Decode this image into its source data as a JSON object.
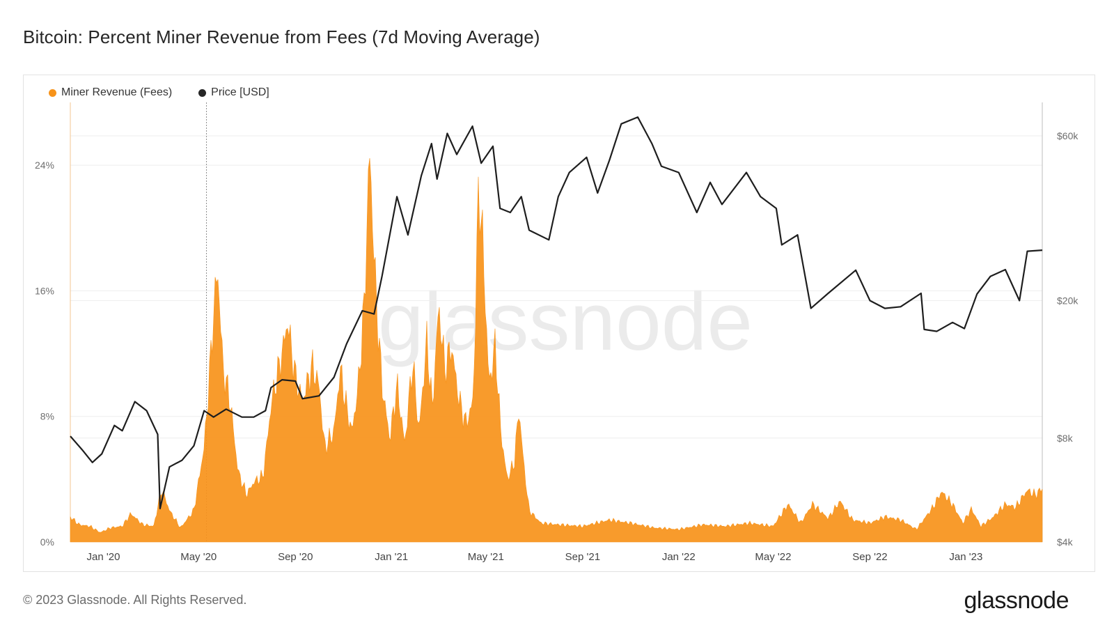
{
  "page": {
    "title": "Bitcoin: Percent Miner Revenue from Fees (7d Moving Average)",
    "footer": "© 2023 Glassnode. All Rights Reserved.",
    "brand": "glassnode",
    "watermark": "glassnode"
  },
  "colors": {
    "fees": "#f7931a",
    "price": "#1e1e1e",
    "grid": "#eeeeee",
    "axis_text": "#6e6e6e"
  },
  "chart_data": {
    "type": "area",
    "title": "Bitcoin: Percent Miner Revenue from Fees (7d Moving Average)",
    "legend_position": "top-left",
    "x_ticks": [
      "Jan '20",
      "May '20",
      "Sep '20",
      "Jan '21",
      "May '21",
      "Sep '21",
      "Jan '22",
      "May '22",
      "Sep '22",
      "Jan '23"
    ],
    "y_left": {
      "ticks": [
        "0%",
        "8%",
        "16%",
        "24%"
      ],
      "range": [
        0,
        28
      ]
    },
    "y_right": {
      "ticks": [
        "$4k",
        "$8k",
        "$20k",
        "$60k"
      ],
      "scale": "log",
      "range": [
        4000,
        75000
      ]
    },
    "series": [
      {
        "name": "Miner Revenue (Fees)",
        "axis": "left",
        "unit": "%",
        "points": [
          [
            "2019-11-20",
            1.6
          ],
          [
            "2019-12-01",
            1.1
          ],
          [
            "2019-12-15",
            1.0
          ],
          [
            "2019-12-28",
            0.6
          ],
          [
            "2020-01-10",
            0.9
          ],
          [
            "2020-01-25",
            1.0
          ],
          [
            "2020-02-05",
            1.8
          ],
          [
            "2020-02-20",
            1.1
          ],
          [
            "2020-03-05",
            1.0
          ],
          [
            "2020-03-15",
            3.4
          ],
          [
            "2020-03-25",
            2.0
          ],
          [
            "2020-04-08",
            0.9
          ],
          [
            "2020-04-25",
            2.0
          ],
          [
            "2020-05-08",
            6.0
          ],
          [
            "2020-05-14",
            10.0
          ],
          [
            "2020-05-20",
            14.5
          ],
          [
            "2020-05-25",
            17.5
          ],
          [
            "2020-06-01",
            11.0
          ],
          [
            "2020-06-10",
            9.0
          ],
          [
            "2020-06-20",
            4.5
          ],
          [
            "2020-07-01",
            3.0
          ],
          [
            "2020-07-10",
            3.8
          ],
          [
            "2020-07-22",
            4.2
          ],
          [
            "2020-08-02",
            9.0
          ],
          [
            "2020-08-15",
            12.0
          ],
          [
            "2020-08-22",
            14.0
          ],
          [
            "2020-09-01",
            10.5
          ],
          [
            "2020-09-10",
            9.0
          ],
          [
            "2020-09-22",
            11.2
          ],
          [
            "2020-10-01",
            10.0
          ],
          [
            "2020-10-08",
            6.0
          ],
          [
            "2020-10-20",
            7.0
          ],
          [
            "2020-10-28",
            11.0
          ],
          [
            "2020-11-05",
            8.5
          ],
          [
            "2020-11-12",
            7.0
          ],
          [
            "2020-11-20",
            10.0
          ],
          [
            "2020-11-28",
            15.5
          ],
          [
            "2020-12-04",
            25.0
          ],
          [
            "2020-12-12",
            16.0
          ],
          [
            "2020-12-20",
            10.0
          ],
          [
            "2020-12-30",
            6.5
          ],
          [
            "2021-01-08",
            10.0
          ],
          [
            "2021-01-18",
            6.2
          ],
          [
            "2021-01-28",
            11.5
          ],
          [
            "2021-02-05",
            7.0
          ],
          [
            "2021-02-15",
            12.8
          ],
          [
            "2021-02-22",
            8.5
          ],
          [
            "2021-03-02",
            15.0
          ],
          [
            "2021-03-10",
            11.0
          ],
          [
            "2021-03-18",
            12.5
          ],
          [
            "2021-03-28",
            9.0
          ],
          [
            "2021-04-06",
            7.5
          ],
          [
            "2021-04-15",
            9.0
          ],
          [
            "2021-04-22",
            23.0
          ],
          [
            "2021-04-27",
            19.0
          ],
          [
            "2021-05-05",
            10.0
          ],
          [
            "2021-05-13",
            12.5
          ],
          [
            "2021-05-20",
            7.0
          ],
          [
            "2021-05-28",
            4.0
          ],
          [
            "2021-06-06",
            5.0
          ],
          [
            "2021-06-12",
            8.5
          ],
          [
            "2021-06-18",
            5.0
          ],
          [
            "2021-06-25",
            2.0
          ],
          [
            "2021-07-10",
            1.2
          ],
          [
            "2021-08-01",
            1.1
          ],
          [
            "2021-09-01",
            1.0
          ],
          [
            "2021-10-05",
            1.4
          ],
          [
            "2021-11-01",
            1.2
          ],
          [
            "2021-12-01",
            0.9
          ],
          [
            "2022-01-01",
            0.8
          ],
          [
            "2022-02-01",
            1.1
          ],
          [
            "2022-03-01",
            1.0
          ],
          [
            "2022-04-01",
            1.2
          ],
          [
            "2022-05-01",
            1.0
          ],
          [
            "2022-05-20",
            2.4
          ],
          [
            "2022-06-05",
            1.2
          ],
          [
            "2022-06-20",
            2.4
          ],
          [
            "2022-07-10",
            1.5
          ],
          [
            "2022-07-25",
            2.6
          ],
          [
            "2022-08-10",
            1.4
          ],
          [
            "2022-09-01",
            1.2
          ],
          [
            "2022-09-20",
            1.6
          ],
          [
            "2022-10-10",
            1.4
          ],
          [
            "2022-10-30",
            0.8
          ],
          [
            "2022-11-20",
            2.2
          ],
          [
            "2022-12-01",
            3.2
          ],
          [
            "2022-12-15",
            2.4
          ],
          [
            "2022-12-28",
            1.2
          ],
          [
            "2023-01-08",
            2.1
          ],
          [
            "2023-01-20",
            1.0
          ],
          [
            "2023-02-05",
            1.6
          ],
          [
            "2023-02-20",
            2.4
          ],
          [
            "2023-03-05",
            2.2
          ],
          [
            "2023-03-20",
            3.3
          ],
          [
            "2023-03-30",
            3.0
          ],
          [
            "2023-04-08",
            3.4
          ]
        ]
      },
      {
        "name": "Price [USD]",
        "axis": "right",
        "unit": "USD",
        "points": [
          [
            "2019-11-20",
            8100
          ],
          [
            "2019-12-05",
            7400
          ],
          [
            "2019-12-18",
            6800
          ],
          [
            "2019-12-30",
            7200
          ],
          [
            "2020-01-15",
            8700
          ],
          [
            "2020-01-25",
            8400
          ],
          [
            "2020-02-10",
            10200
          ],
          [
            "2020-02-25",
            9600
          ],
          [
            "2020-03-10",
            8200
          ],
          [
            "2020-03-13",
            5000
          ],
          [
            "2020-03-25",
            6600
          ],
          [
            "2020-04-10",
            6900
          ],
          [
            "2020-04-25",
            7600
          ],
          [
            "2020-05-08",
            9600
          ],
          [
            "2020-05-20",
            9200
          ],
          [
            "2020-06-05",
            9700
          ],
          [
            "2020-06-25",
            9200
          ],
          [
            "2020-07-10",
            9200
          ],
          [
            "2020-07-25",
            9600
          ],
          [
            "2020-08-01",
            11200
          ],
          [
            "2020-08-15",
            11800
          ],
          [
            "2020-09-01",
            11700
          ],
          [
            "2020-09-10",
            10400
          ],
          [
            "2020-10-01",
            10600
          ],
          [
            "2020-10-20",
            12000
          ],
          [
            "2020-11-05",
            15000
          ],
          [
            "2020-11-25",
            18700
          ],
          [
            "2020-12-10",
            18300
          ],
          [
            "2020-12-20",
            23500
          ],
          [
            "2021-01-08",
            40000
          ],
          [
            "2021-01-22",
            31000
          ],
          [
            "2021-02-08",
            46000
          ],
          [
            "2021-02-21",
            57000
          ],
          [
            "2021-02-28",
            45000
          ],
          [
            "2021-03-13",
            61000
          ],
          [
            "2021-03-25",
            53000
          ],
          [
            "2021-04-14",
            64000
          ],
          [
            "2021-04-25",
            50000
          ],
          [
            "2021-05-10",
            56000
          ],
          [
            "2021-05-19",
            37000
          ],
          [
            "2021-06-01",
            36000
          ],
          [
            "2021-06-15",
            40000
          ],
          [
            "2021-06-25",
            32000
          ],
          [
            "2021-07-20",
            30000
          ],
          [
            "2021-08-01",
            40000
          ],
          [
            "2021-08-15",
            47000
          ],
          [
            "2021-09-06",
            52000
          ],
          [
            "2021-09-20",
            41000
          ],
          [
            "2021-10-05",
            51000
          ],
          [
            "2021-10-20",
            65000
          ],
          [
            "2021-11-10",
            68000
          ],
          [
            "2021-11-28",
            57000
          ],
          [
            "2021-12-10",
            49000
          ],
          [
            "2022-01-01",
            47000
          ],
          [
            "2022-01-24",
            36000
          ],
          [
            "2022-02-10",
            44000
          ],
          [
            "2022-02-25",
            38000
          ],
          [
            "2022-03-28",
            47000
          ],
          [
            "2022-04-15",
            40000
          ],
          [
            "2022-05-05",
            37000
          ],
          [
            "2022-05-12",
            29000
          ],
          [
            "2022-06-01",
            31000
          ],
          [
            "2022-06-13",
            22000
          ],
          [
            "2022-06-18",
            19000
          ],
          [
            "2022-07-10",
            21000
          ],
          [
            "2022-08-14",
            24500
          ],
          [
            "2022-09-01",
            20000
          ],
          [
            "2022-09-20",
            19000
          ],
          [
            "2022-10-10",
            19200
          ],
          [
            "2022-11-05",
            21000
          ],
          [
            "2022-11-09",
            16500
          ],
          [
            "2022-11-25",
            16300
          ],
          [
            "2022-12-15",
            17300
          ],
          [
            "2022-12-30",
            16600
          ],
          [
            "2023-01-15",
            20900
          ],
          [
            "2023-02-01",
            23500
          ],
          [
            "2023-02-20",
            24600
          ],
          [
            "2023-03-10",
            20000
          ],
          [
            "2023-03-20",
            27800
          ],
          [
            "2023-04-08",
            28000
          ]
        ]
      }
    ]
  }
}
